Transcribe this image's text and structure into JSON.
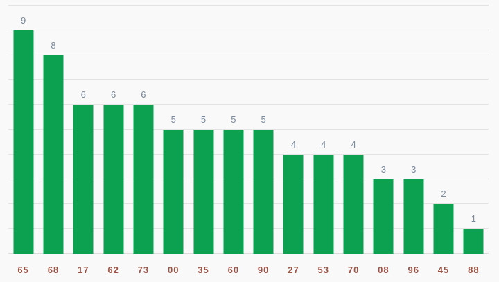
{
  "background_color": "#f9f9f9",
  "chart_data": {
    "type": "bar",
    "categories": [
      "65",
      "68",
      "17",
      "62",
      "73",
      "00",
      "35",
      "60",
      "90",
      "27",
      "53",
      "70",
      "08",
      "96",
      "45",
      "88"
    ],
    "values": [
      9,
      8,
      6,
      6,
      6,
      5,
      5,
      5,
      5,
      4,
      4,
      4,
      3,
      3,
      2,
      1
    ],
    "title": "",
    "xlabel": "",
    "ylabel": "",
    "ylim": [
      0,
      10
    ],
    "grid": true,
    "gridline_interval": 1,
    "legend": "none",
    "value_labels_shown": true,
    "bar_color": "#0ba150",
    "value_label_color": "#7b8a9c",
    "axis_label_color": "#9e5244",
    "gridline_color": "#e3e3e3",
    "baseline_color": "#dcdcdc"
  }
}
